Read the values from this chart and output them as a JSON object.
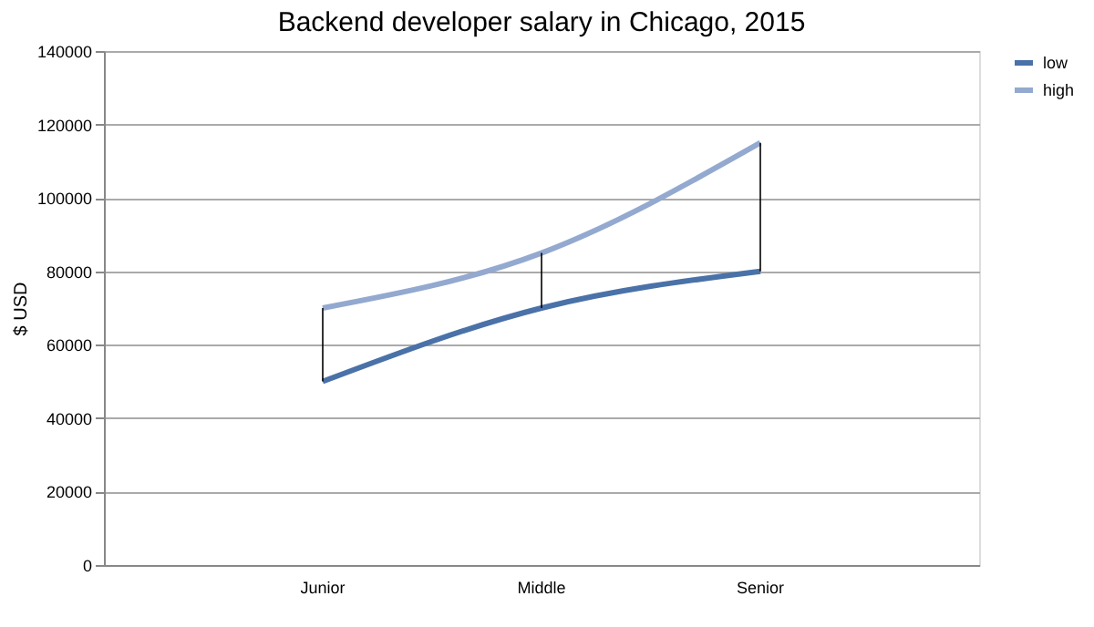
{
  "chart_data": {
    "type": "line",
    "title": "Backend developer salary in Chicago, 2015",
    "ylabel": "$ USD",
    "categories": [
      "Junior",
      "Middle",
      "Senior"
    ],
    "series": [
      {
        "name": "low",
        "color": "#4a72a8",
        "values": [
          50000,
          70000,
          80000
        ],
        "errors": [
          [
            50000,
            70000
          ],
          [
            70000,
            85000
          ],
          [
            80000,
            115000
          ]
        ]
      },
      {
        "name": "high",
        "color": "#93a9cf",
        "values": [
          70000,
          85000,
          115000
        ]
      }
    ],
    "ylim": [
      0,
      140000
    ],
    "yticks": [
      0,
      20000,
      40000,
      60000,
      80000,
      100000,
      120000,
      140000
    ],
    "grid": "y",
    "legend": "right",
    "marker": "none",
    "line_style": "solid"
  }
}
